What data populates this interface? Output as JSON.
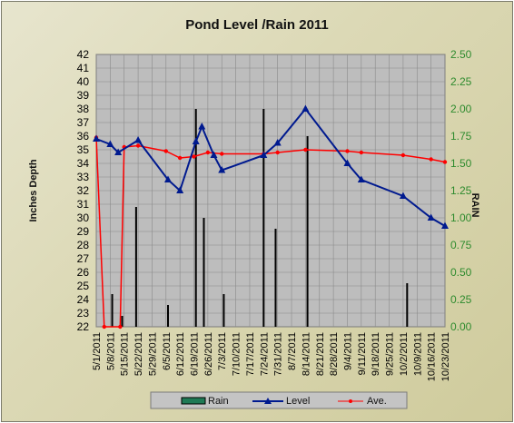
{
  "chart_data": {
    "type": "bar+line",
    "title": "Pond Level /Rain 2011",
    "ylabel_left": "Inches Depth",
    "ylabel_right": "RAIN",
    "ylim_left": [
      22,
      42
    ],
    "ylim_right": [
      0,
      2.5
    ],
    "left_ticks": [
      "22",
      "23",
      "24",
      "25",
      "26",
      "27",
      "28",
      "29",
      "30",
      "31",
      "32",
      "33",
      "34",
      "35",
      "36",
      "37",
      "38",
      "39",
      "40",
      "41",
      "42"
    ],
    "right_ticks": [
      "0.00",
      "0.25",
      "0.50",
      "0.75",
      "1.00",
      "1.25",
      "1.50",
      "1.75",
      "2.00",
      "2.25",
      "2.50"
    ],
    "categories": [
      "5/1/2011",
      "5/8/2011",
      "5/15/2011",
      "5/22/2011",
      "5/29/2011",
      "6/5/2011",
      "6/12/2011",
      "6/19/2011",
      "6/26/2011",
      "7/3/2011",
      "7/10/2011",
      "7/17/2011",
      "7/24/2011",
      "7/31/2011",
      "8/7/2011",
      "8/14/2011",
      "8/21/2011",
      "8/28/2011",
      "9/4/2011",
      "9/11/2011",
      "9/18/2011",
      "9/25/2011",
      "10/2/2011",
      "10/9/2011",
      "10/16/2011",
      "10/23/2011"
    ],
    "x_start": "5/1/2011",
    "x_end": "10/23/2011",
    "series": [
      {
        "name": "Rain",
        "axis": "right",
        "kind": "bar",
        "color": "#000000",
        "legend_color": "#1f7a55",
        "points": [
          {
            "x": "5/9/2011",
            "y": 0.3
          },
          {
            "x": "5/14/2011",
            "y": 0.1
          },
          {
            "x": "5/21/2011",
            "y": 1.1
          },
          {
            "x": "6/6/2011",
            "y": 0.2
          },
          {
            "x": "6/20/2011",
            "y": 2.0
          },
          {
            "x": "6/24/2011",
            "y": 1.0
          },
          {
            "x": "7/4/2011",
            "y": 0.3
          },
          {
            "x": "7/24/2011",
            "y": 2.0
          },
          {
            "x": "7/30/2011",
            "y": 0.9
          },
          {
            "x": "8/15/2011",
            "y": 1.75
          },
          {
            "x": "10/4/2011",
            "y": 0.4
          }
        ]
      },
      {
        "name": "Level",
        "axis": "left",
        "kind": "line",
        "color": "#001a8f",
        "marker": "triangle",
        "points": [
          {
            "x": "5/1/2011",
            "y": 35.8
          },
          {
            "x": "5/8/2011",
            "y": 35.4
          },
          {
            "x": "5/12/2011",
            "y": 34.8
          },
          {
            "x": "5/22/2011",
            "y": 35.7
          },
          {
            "x": "6/6/2011",
            "y": 32.8
          },
          {
            "x": "6/12/2011",
            "y": 32.0
          },
          {
            "x": "6/20/2011",
            "y": 35.6
          },
          {
            "x": "6/23/2011",
            "y": 36.7
          },
          {
            "x": "6/29/2011",
            "y": 34.6
          },
          {
            "x": "7/3/2011",
            "y": 33.5
          },
          {
            "x": "7/24/2011",
            "y": 34.6
          },
          {
            "x": "7/31/2011",
            "y": 35.5
          },
          {
            "x": "8/14/2011",
            "y": 38.0
          },
          {
            "x": "9/4/2011",
            "y": 34.0
          },
          {
            "x": "9/11/2011",
            "y": 32.8
          },
          {
            "x": "10/2/2011",
            "y": 31.6
          },
          {
            "x": "10/16/2011",
            "y": 30.0
          },
          {
            "x": "10/23/2011",
            "y": 29.4
          }
        ]
      },
      {
        "name": "Ave.",
        "axis": "left",
        "kind": "line",
        "color": "#ff0000",
        "marker": "dot",
        "points": [
          {
            "x": "5/1/2011",
            "y": 35.9
          },
          {
            "x": "5/5/2011",
            "y": 22.0
          },
          {
            "x": "5/13/2011",
            "y": 22.0
          },
          {
            "x": "5/15/2011",
            "y": 35.2
          },
          {
            "x": "5/22/2011",
            "y": 35.3
          },
          {
            "x": "6/5/2011",
            "y": 34.9
          },
          {
            "x": "6/12/2011",
            "y": 34.4
          },
          {
            "x": "6/19/2011",
            "y": 34.5
          },
          {
            "x": "6/26/2011",
            "y": 34.8
          },
          {
            "x": "7/3/2011",
            "y": 34.7
          },
          {
            "x": "7/24/2011",
            "y": 34.7
          },
          {
            "x": "7/31/2011",
            "y": 34.8
          },
          {
            "x": "8/14/2011",
            "y": 35.0
          },
          {
            "x": "9/4/2011",
            "y": 34.9
          },
          {
            "x": "9/11/2011",
            "y": 34.8
          },
          {
            "x": "10/2/2011",
            "y": 34.6
          },
          {
            "x": "10/16/2011",
            "y": 34.3
          },
          {
            "x": "10/23/2011",
            "y": 34.1
          }
        ]
      }
    ],
    "grid": true,
    "legend_position": "bottom"
  }
}
